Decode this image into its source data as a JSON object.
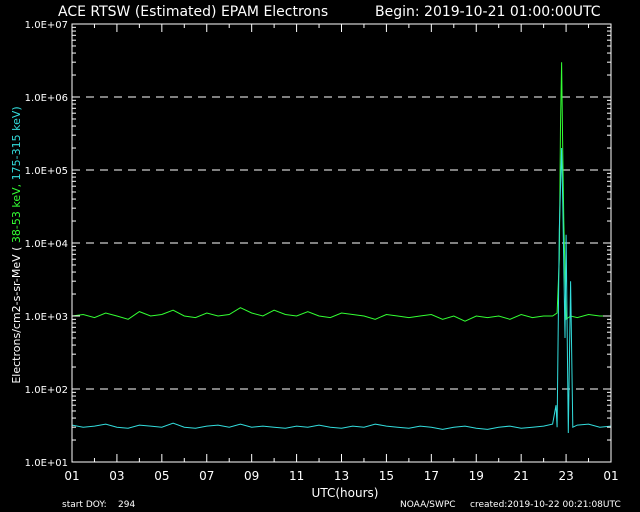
{
  "header": {
    "title": "ACE RTSW (Estimated) EPAM Electrons",
    "begin": "Begin: 2019-10-21 01:00:00UTC"
  },
  "footer": {
    "start_doy_label": "start DOY:",
    "start_doy_value": "294",
    "source": "NOAA/SWPC",
    "created": "created:2019-10-22 00:21:08UTC"
  },
  "colors": {
    "background": "#000000",
    "axes": "#ffffff",
    "grid": "#ffffff",
    "series_38_53": "#33ff33",
    "series_175_315": "#33dddd"
  },
  "chart_data": {
    "type": "line",
    "title": "ACE RTSW (Estimated) EPAM Electrons",
    "xlabel": "UTC(hours)",
    "ylabel_parts": [
      {
        "text": "Electrons/cm2-s-sr-MeV  ( ",
        "color": "#ffffff"
      },
      {
        "text": "38-53 keV,",
        "color": "#33ff33"
      },
      {
        "text": " 175-315 keV)",
        "color": "#33dddd"
      }
    ],
    "y_scale": "log",
    "ylim": [
      10,
      10000000
    ],
    "y_ticks": [
      {
        "value": 10,
        "label": "1.0E+01"
      },
      {
        "value": 100,
        "label": "1.0E+02"
      },
      {
        "value": 1000,
        "label": "1.0E+03"
      },
      {
        "value": 10000,
        "label": "1.0E+04"
      },
      {
        "value": 100000,
        "label": "1.0E+05"
      },
      {
        "value": 1000000,
        "label": "1.0E+06"
      },
      {
        "value": 10000000,
        "label": "1.0E+07"
      }
    ],
    "gridlines_y": [
      100,
      10000,
      100000,
      1000000
    ],
    "x_unit": "hours from 2019-10-21 01:00 UTC",
    "xlim": [
      0,
      24
    ],
    "x_ticks": [
      {
        "value": 0,
        "label": "01"
      },
      {
        "value": 2,
        "label": "03"
      },
      {
        "value": 4,
        "label": "05"
      },
      {
        "value": 6,
        "label": "07"
      },
      {
        "value": 8,
        "label": "09"
      },
      {
        "value": 10,
        "label": "11"
      },
      {
        "value": 12,
        "label": "13"
      },
      {
        "value": 14,
        "label": "15"
      },
      {
        "value": 16,
        "label": "17"
      },
      {
        "value": 18,
        "label": "19"
      },
      {
        "value": 20,
        "label": "21"
      },
      {
        "value": 22,
        "label": "23"
      },
      {
        "value": 24,
        "label": "01"
      }
    ],
    "series": [
      {
        "name": "38-53 keV",
        "color": "#33ff33",
        "x": [
          0,
          0.5,
          1,
          1.5,
          2,
          2.5,
          3,
          3.5,
          4,
          4.5,
          5,
          5.5,
          6,
          6.5,
          7,
          7.5,
          8,
          8.5,
          9,
          9.5,
          10,
          10.5,
          11,
          11.5,
          12,
          12.5,
          13,
          13.5,
          14,
          14.5,
          15,
          15.5,
          16,
          16.5,
          17,
          17.5,
          18,
          18.5,
          19,
          19.5,
          20,
          20.5,
          21,
          21.4,
          21.6,
          21.7,
          21.75,
          21.8,
          21.85,
          21.9,
          22.0,
          22.2,
          22.5,
          23,
          23.5,
          24
        ],
        "y": [
          1000,
          1050,
          950,
          1100,
          1000,
          900,
          1150,
          1000,
          1050,
          1200,
          1000,
          950,
          1100,
          1000,
          1050,
          1300,
          1100,
          1000,
          1200,
          1050,
          1000,
          1150,
          1000,
          950,
          1100,
          1050,
          1000,
          900,
          1050,
          1000,
          950,
          1000,
          1050,
          900,
          1000,
          850,
          1000,
          950,
          1000,
          900,
          1050,
          950,
          1000,
          1000,
          1100,
          6000,
          400000,
          3000000,
          200000,
          20000,
          900,
          1000,
          950,
          1050,
          1000,
          1000
        ]
      },
      {
        "name": "175-315 keV",
        "color": "#33dddd",
        "x": [
          0,
          0.5,
          1,
          1.5,
          2,
          2.5,
          3,
          3.5,
          4,
          4.5,
          5,
          5.5,
          6,
          6.5,
          7,
          7.5,
          8,
          8.5,
          9,
          9.5,
          10,
          10.5,
          11,
          11.5,
          12,
          12.5,
          13,
          13.5,
          14,
          14.5,
          15,
          15.5,
          16,
          16.5,
          17,
          17.5,
          18,
          18.5,
          19,
          19.5,
          20,
          20.5,
          21,
          21.4,
          21.55,
          21.6,
          21.7,
          21.8,
          21.85,
          21.95,
          22.0,
          22.1,
          22.2,
          22.3,
          22.5,
          23,
          23.5,
          24
        ],
        "y": [
          32,
          30,
          31,
          33,
          30,
          29,
          32,
          31,
          30,
          34,
          30,
          29,
          31,
          32,
          30,
          33,
          30,
          31,
          30,
          29,
          31,
          30,
          32,
          30,
          29,
          31,
          30,
          33,
          31,
          30,
          29,
          31,
          30,
          28,
          30,
          31,
          29,
          28,
          30,
          31,
          29,
          30,
          31,
          33,
          60,
          30,
          15000,
          200000,
          40000,
          500,
          13000,
          25,
          3000,
          30,
          32,
          33,
          30,
          31
        ]
      }
    ]
  }
}
